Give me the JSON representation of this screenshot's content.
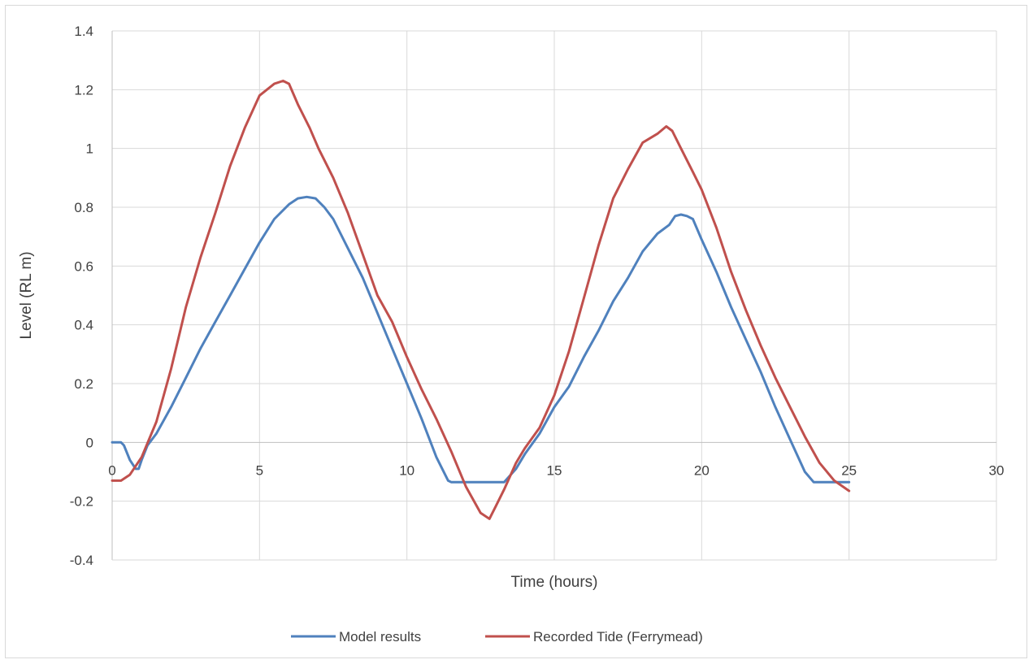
{
  "chart_data": {
    "type": "line",
    "title": "",
    "xlabel": "Time (hours)",
    "ylabel": "Level (RL m)",
    "xlim": [
      0,
      30
    ],
    "ylim": [
      -0.4,
      1.4
    ],
    "x_ticks": [
      0,
      5,
      10,
      15,
      20,
      25,
      30
    ],
    "x_tick_labels": [
      "0",
      "5",
      "10",
      "15",
      "20",
      "25",
      "30"
    ],
    "y_ticks": [
      -0.4,
      -0.2,
      0,
      0.2,
      0.4,
      0.6,
      0.8,
      1,
      1.2,
      1.4
    ],
    "y_tick_labels": [
      "-0.4",
      "-0.2",
      "0",
      "0.2",
      "0.4",
      "0.6",
      "0.8",
      "1",
      "1.2",
      "1.4"
    ],
    "grid": true,
    "legend_position": "bottom",
    "series": [
      {
        "name": "Model results",
        "color": "#4f81bd",
        "x": [
          0,
          0.3,
          0.4,
          0.6,
          0.8,
          0.9,
          1.0,
          1.2,
          1.5,
          2.0,
          2.5,
          3.0,
          3.5,
          4.0,
          4.5,
          5.0,
          5.5,
          6.0,
          6.3,
          6.6,
          6.9,
          7.2,
          7.5,
          8.0,
          8.5,
          9.0,
          9.5,
          10.0,
          10.5,
          11.0,
          11.4,
          11.5,
          12.0,
          12.5,
          13.0,
          13.3,
          13.7,
          14.0,
          14.5,
          15.0,
          15.5,
          16.0,
          16.5,
          17.0,
          17.5,
          18.0,
          18.5,
          18.9,
          19.1,
          19.3,
          19.5,
          19.7,
          20.0,
          20.5,
          21.0,
          21.5,
          22.0,
          22.5,
          23.0,
          23.5,
          23.8,
          24.0,
          24.5,
          25.0
        ],
        "y": [
          0,
          0,
          -0.01,
          -0.06,
          -0.09,
          -0.09,
          -0.06,
          -0.01,
          0.03,
          0.12,
          0.22,
          0.32,
          0.41,
          0.5,
          0.59,
          0.68,
          0.76,
          0.81,
          0.83,
          0.835,
          0.83,
          0.8,
          0.76,
          0.66,
          0.56,
          0.44,
          0.32,
          0.2,
          0.08,
          -0.05,
          -0.13,
          -0.135,
          -0.135,
          -0.135,
          -0.135,
          -0.135,
          -0.09,
          -0.04,
          0.03,
          0.12,
          0.19,
          0.29,
          0.38,
          0.48,
          0.56,
          0.65,
          0.71,
          0.74,
          0.77,
          0.775,
          0.77,
          0.76,
          0.69,
          0.58,
          0.46,
          0.35,
          0.24,
          0.12,
          0.01,
          -0.1,
          -0.135,
          -0.135,
          -0.135,
          -0.135
        ]
      },
      {
        "name": "Recorded Tide (Ferrymead)",
        "color": "#c0504d",
        "x": [
          0,
          0.3,
          0.6,
          1.0,
          1.5,
          2.0,
          2.5,
          3.0,
          3.5,
          4.0,
          4.5,
          5.0,
          5.5,
          5.8,
          6.0,
          6.3,
          6.7,
          7.0,
          7.5,
          8.0,
          8.5,
          9.0,
          9.5,
          10.0,
          10.5,
          11.0,
          11.5,
          12.0,
          12.5,
          12.8,
          13.0,
          13.3,
          13.7,
          14.0,
          14.5,
          15.0,
          15.5,
          16.0,
          16.5,
          17.0,
          17.5,
          18.0,
          18.5,
          18.8,
          19.0,
          19.3,
          19.7,
          20.0,
          20.5,
          21.0,
          21.5,
          22.0,
          22.5,
          23.0,
          23.5,
          24.0,
          24.5,
          25.0
        ],
        "y": [
          -0.13,
          -0.13,
          -0.11,
          -0.05,
          0.07,
          0.25,
          0.46,
          0.63,
          0.78,
          0.94,
          1.07,
          1.18,
          1.22,
          1.23,
          1.22,
          1.15,
          1.07,
          1.0,
          0.9,
          0.78,
          0.64,
          0.5,
          0.41,
          0.29,
          0.18,
          0.08,
          -0.03,
          -0.15,
          -0.24,
          -0.26,
          -0.22,
          -0.16,
          -0.07,
          -0.02,
          0.05,
          0.16,
          0.31,
          0.49,
          0.67,
          0.83,
          0.93,
          1.02,
          1.05,
          1.075,
          1.06,
          1.0,
          0.92,
          0.86,
          0.73,
          0.58,
          0.45,
          0.33,
          0.22,
          0.12,
          0.02,
          -0.07,
          -0.13,
          -0.165
        ]
      }
    ]
  }
}
